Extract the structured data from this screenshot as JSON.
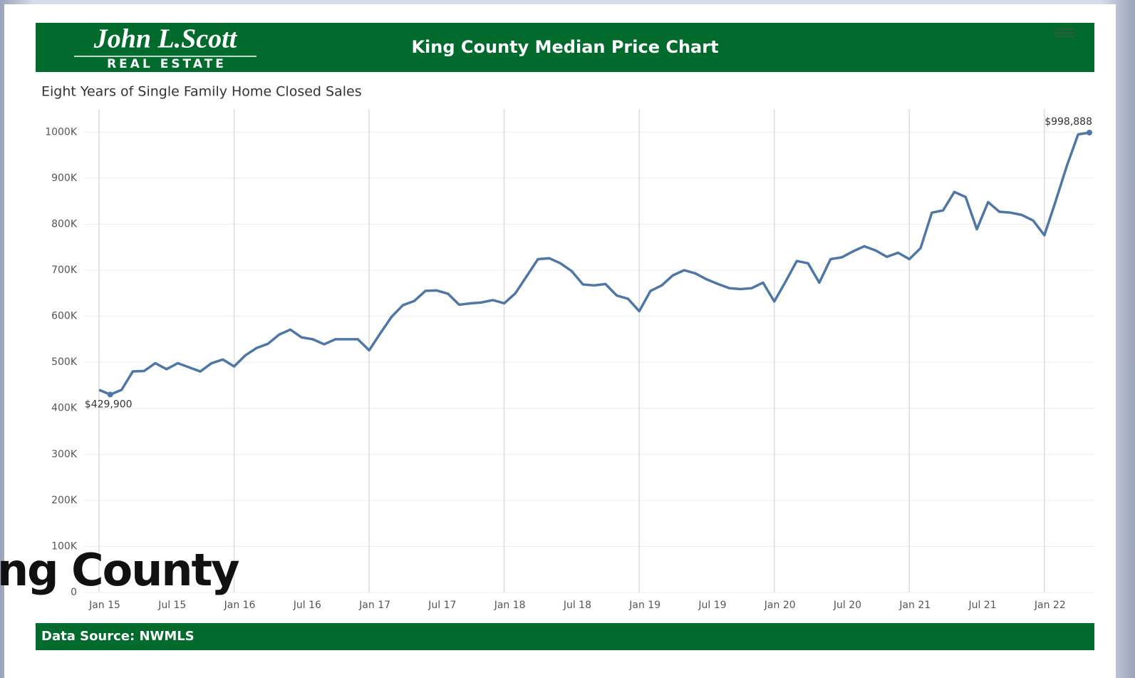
{
  "logo": {
    "name": "John L.Scott",
    "tagline": "REAL ESTATE"
  },
  "overlay_text": "ng County",
  "footer": "Data Source: NWMLS",
  "chart_data": {
    "type": "line",
    "title": "King County Median Price Chart",
    "subtitle": "Eight Years of Single Family Home Closed Sales",
    "categories": [
      "Jan 15",
      null,
      null,
      null,
      null,
      null,
      "Jul 15",
      null,
      null,
      null,
      null,
      null,
      "Jan 16",
      null,
      null,
      null,
      null,
      null,
      "Jul 16",
      null,
      null,
      null,
      null,
      null,
      "Jan 17",
      null,
      null,
      null,
      null,
      null,
      "Jul 17",
      null,
      null,
      null,
      null,
      null,
      "Jan 18",
      null,
      null,
      null,
      null,
      null,
      "Jul 18",
      null,
      null,
      null,
      null,
      null,
      "Jan 19",
      null,
      null,
      null,
      null,
      null,
      "Jul 19",
      null,
      null,
      null,
      null,
      null,
      "Jan 20",
      null,
      null,
      null,
      null,
      null,
      "Jul 20",
      null,
      null,
      null,
      null,
      null,
      "Jan 21",
      null,
      null,
      null,
      null,
      null,
      "Jul 21",
      null,
      null,
      null,
      null,
      null,
      "Jan 22",
      null,
      null,
      null,
      null
    ],
    "series": [
      {
        "name": "Median Price",
        "color": "#4f77a6",
        "values": [
          440000,
          429900,
          440000,
          480000,
          481000,
          498000,
          485000,
          498000,
          489000,
          480000,
          498000,
          506000,
          491000,
          515000,
          531000,
          540000,
          560000,
          571000,
          554000,
          550000,
          539000,
          550000,
          550000,
          550000,
          526000,
          563000,
          599000,
          624000,
          633000,
          655000,
          656000,
          649000,
          625000,
          628000,
          630000,
          635000,
          628000,
          650000,
          687000,
          724000,
          726000,
          715000,
          698000,
          669000,
          667000,
          670000,
          645000,
          638000,
          611000,
          655000,
          667000,
          689000,
          700000,
          693000,
          680000,
          670000,
          661000,
          659000,
          661000,
          673000,
          632000,
          675000,
          720000,
          715000,
          673000,
          724000,
          728000,
          741000,
          752000,
          743000,
          729000,
          738000,
          724000,
          748000,
          825000,
          830000,
          870000,
          859000,
          789000,
          848000,
          827000,
          825000,
          820000,
          808000,
          776000,
          850000,
          927000,
          995000,
          998888
        ],
        "value_labels": [
          null,
          "$429,900",
          null,
          null,
          null,
          null,
          null,
          null,
          null,
          null,
          null,
          null,
          null,
          null,
          null,
          null,
          null,
          null,
          null,
          null,
          null,
          null,
          null,
          null,
          null,
          null,
          null,
          null,
          null,
          null,
          null,
          null,
          null,
          null,
          null,
          null,
          null,
          null,
          null,
          null,
          null,
          null,
          null,
          null,
          null,
          null,
          null,
          null,
          null,
          null,
          null,
          null,
          null,
          null,
          null,
          null,
          null,
          null,
          null,
          null,
          null,
          null,
          null,
          null,
          null,
          null,
          null,
          null,
          null,
          null,
          null,
          null,
          null,
          null,
          null,
          null,
          null,
          null,
          null,
          null,
          null,
          null,
          null,
          null,
          null,
          null,
          null,
          null,
          "$998,888"
        ]
      }
    ],
    "ylim": [
      0,
      1050000
    ],
    "yticks": [
      0,
      {
        "value": 100000,
        "label": "100K"
      },
      {
        "value": 200000,
        "label": "200K"
      },
      {
        "value": 300000,
        "label": "300K"
      },
      {
        "value": 400000,
        "label": "400K"
      },
      {
        "value": 500000,
        "label": "500K"
      },
      {
        "value": 600000,
        "label": "600K"
      },
      {
        "value": 700000,
        "label": "700K"
      },
      {
        "value": 800000,
        "label": "800K"
      },
      {
        "value": 900000,
        "label": "900K"
      },
      {
        "value": 1000000,
        "label": "1000K"
      }
    ],
    "grid": true
  }
}
